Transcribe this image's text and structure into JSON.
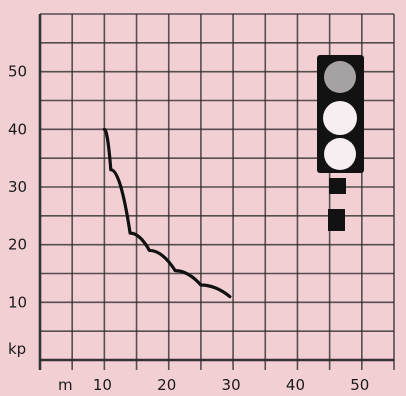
{
  "colors": {
    "paper": "#f1cfd3",
    "grid": "#2b2b2b",
    "curve": "#111111",
    "signal_body": "#121212",
    "signal_lamp": "#f6eef0"
  },
  "chart_data": {
    "type": "line",
    "x_unit": "m",
    "y_unit": "kp",
    "x_ticks": [
      10,
      20,
      30,
      40,
      50
    ],
    "x_tick_labels": [
      "10",
      "20",
      "30",
      "40",
      "50"
    ],
    "y_ticks": [
      10,
      20,
      30,
      40,
      50
    ],
    "y_tick_labels": [
      "10",
      "20",
      "30",
      "40",
      "50"
    ],
    "xlim": [
      0,
      55
    ],
    "ylim": [
      0,
      60
    ],
    "grid": true,
    "series": [
      {
        "values": [
          {
            "x": 10,
            "y": 40
          },
          {
            "x": 11,
            "y": 33
          },
          {
            "x": 14,
            "y": 22
          },
          {
            "x": 17,
            "y": 19
          },
          {
            "x": 21,
            "y": 15.5
          },
          {
            "x": 25,
            "y": 13
          },
          {
            "x": 29.5,
            "y": 11
          }
        ]
      }
    ],
    "icon": "signal-light-icon"
  }
}
